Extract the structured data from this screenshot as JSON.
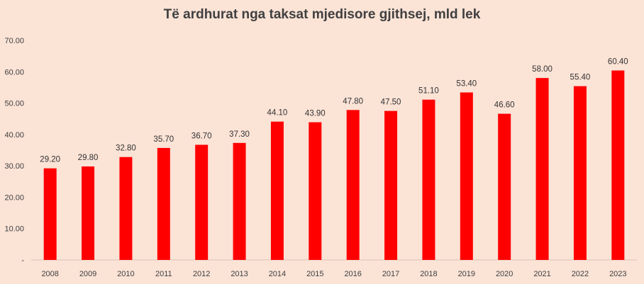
{
  "chart_data": {
    "type": "bar",
    "title": "Të ardhurat nga taksat mjedisore gjithsej, mld lek",
    "xlabel": "",
    "ylabel": "",
    "categories": [
      "2008",
      "2009",
      "2010",
      "2011",
      "2012",
      "2013",
      "2014",
      "2015",
      "2016",
      "2017",
      "2018",
      "2019",
      "2020",
      "2021",
      "2022",
      "2023"
    ],
    "values": [
      29.2,
      29.8,
      32.8,
      35.7,
      36.7,
      37.3,
      44.1,
      43.9,
      47.8,
      47.5,
      51.1,
      53.4,
      46.6,
      58.0,
      55.4,
      60.4
    ],
    "data_labels": [
      "29.20",
      "29.80",
      "32.80",
      "35.70",
      "36.70",
      "37.30",
      "44.10",
      "43.90",
      "47.80",
      "47.50",
      "51.10",
      "53.40",
      "46.60",
      "58.00",
      "55.40",
      "60.40"
    ],
    "ylim": [
      0,
      70
    ],
    "y_ticks": [
      0,
      10,
      20,
      30,
      40,
      50,
      60,
      70
    ],
    "y_tick_labels": [
      "-",
      "10.00",
      "20.00",
      "30.00",
      "40.00",
      "50.00",
      "60.00",
      "70.00"
    ],
    "grid": false,
    "legend": "none",
    "colors": {
      "bar": "#ff0000",
      "background": "#fbe3d6",
      "axis": "#d9c4b8",
      "text": "#404040"
    }
  }
}
